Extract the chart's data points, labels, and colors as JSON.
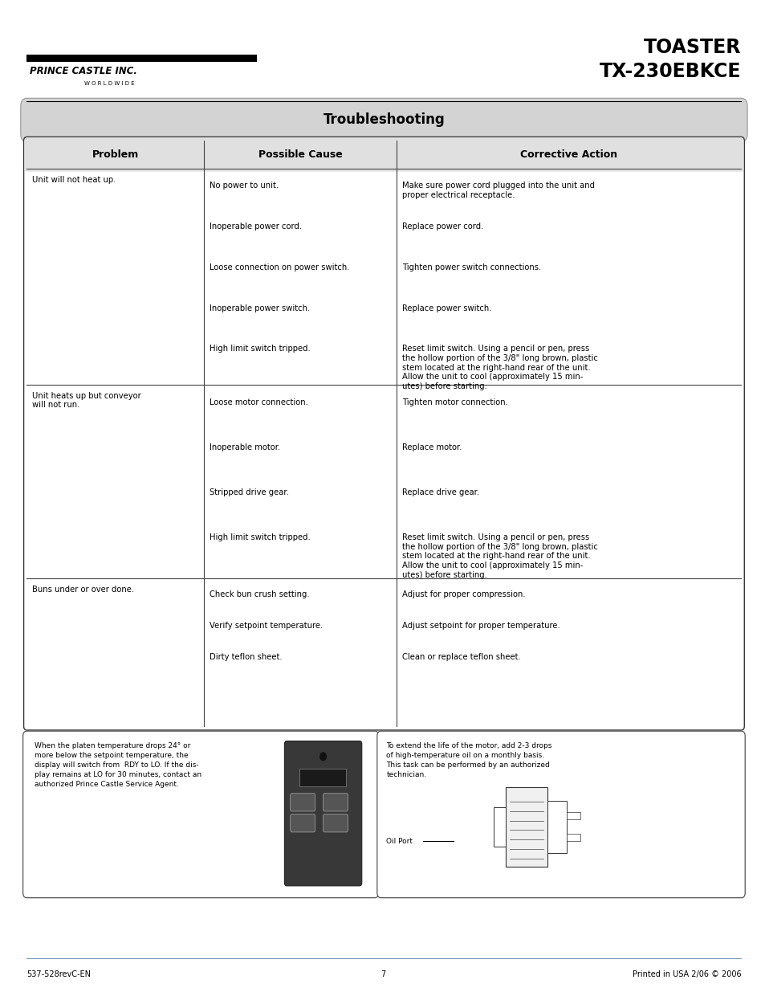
{
  "title_line1": "TOASTER",
  "title_line2": "TX-230EBKCE",
  "section_title": "Troubleshooting",
  "col_headers": [
    "Problem",
    "Possible Cause",
    "Corrective Action"
  ],
  "table_rows": [
    {
      "problem": "Unit will not heat up.",
      "causes": [
        "No power to unit.",
        "Inoperable power cord.",
        "Loose connection on power switch.",
        "Inoperable power switch.",
        "High limit switch tripped."
      ],
      "actions": [
        "Make sure power cord plugged into the unit and\nproper electrical receptacle.",
        "Replace power cord.",
        "Tighten power switch connections.",
        "Replace power switch.",
        "Reset limit switch. Using a pencil or pen, press\nthe hollow portion of the 3/8\" long brown, plastic\nstem located at the right-hand rear of the unit.\nAllow the unit to cool (approximately 15 min-\nutes) before starting."
      ]
    },
    {
      "problem": "Unit heats up but conveyor\nwill not run.",
      "causes": [
        "Loose motor connection.",
        "Inoperable motor.",
        "Stripped drive gear.",
        "High limit switch tripped."
      ],
      "actions": [
        "Tighten motor connection.",
        "Replace motor.",
        "Replace drive gear.",
        "Reset limit switch. Using a pencil or pen, press\nthe hollow portion of the 3/8\" long brown, plastic\nstem located at the right-hand rear of the unit.\nAllow the unit to cool (approximately 15 min-\nutes) before starting."
      ]
    },
    {
      "problem": "Buns under or over done.",
      "causes": [
        "Check bun crush setting.",
        "Verify setpoint temperature.",
        "Dirty teflon sheet."
      ],
      "actions": [
        "Adjust for proper compression.",
        "Adjust setpoint for proper temperature.",
        "Clean or replace teflon sheet."
      ]
    }
  ],
  "note_left_text": "When the platen temperature drops 24° or\nmore below the setpoint temperature, the\ndisplay will switch from  RDY to LO. If the dis-\nplay remains at LO for 30 minutes, contact an\nauthorized Prince Castle Service Agent.",
  "note_right_text": "To extend the life of the motor, add 2-3 drops\nof high-temperature oil on a monthly basis.\nThis task can be performed by an authorized\ntechnician.",
  "oil_port_label": "Oil Port",
  "footer_left": "537-528revC-EN",
  "footer_center": "7",
  "footer_right": "Printed in USA 2/06 © 2006",
  "bg_color": "#ffffff"
}
